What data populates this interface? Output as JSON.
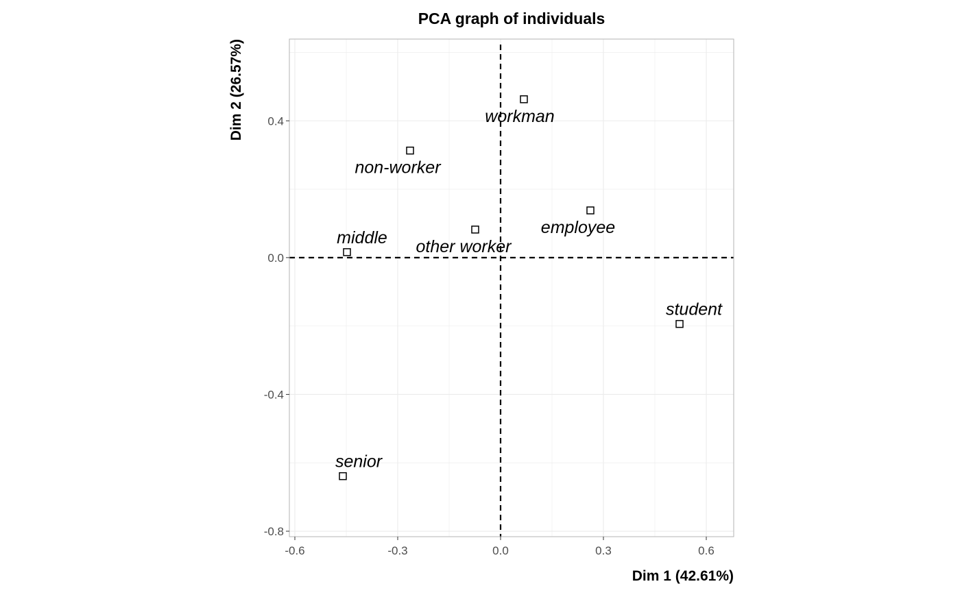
{
  "chart_data": {
    "type": "scatter",
    "title": "PCA graph of individuals",
    "xlabel": "Dim 1 (42.61%)",
    "ylabel": "Dim 2 (26.57%)",
    "xlim": [
      -0.616,
      0.68
    ],
    "ylim": [
      -0.816,
      0.639
    ],
    "xticks": [
      -0.6,
      -0.3,
      0.0,
      0.3,
      0.6
    ],
    "xtick_labels": [
      "-0.6",
      "-0.3",
      "0.0",
      "0.3",
      "0.6"
    ],
    "yticks": [
      -0.8,
      -0.4,
      0.0,
      0.4
    ],
    "ytick_labels": [
      "-0.8",
      "-0.4",
      "0.0",
      "0.4"
    ],
    "grid": true,
    "reference_lines": {
      "x": 0,
      "y": 0,
      "style": "dashed"
    },
    "points": [
      {
        "label": "workman",
        "x": 0.068,
        "y": 0.463
      },
      {
        "label": "non-worker",
        "x": -0.264,
        "y": 0.313
      },
      {
        "label": "employee",
        "x": 0.262,
        "y": 0.138
      },
      {
        "label": "other worker",
        "x": -0.074,
        "y": 0.082
      },
      {
        "label": "middle",
        "x": -0.448,
        "y": 0.016
      },
      {
        "label": "student",
        "x": 0.522,
        "y": -0.194
      },
      {
        "label": "senior",
        "x": -0.46,
        "y": -0.639
      }
    ],
    "colors": {
      "grid": "#ebebeb",
      "panel_border": "#b3b3b3",
      "marks": "#000000",
      "tick_text": "#4d4d4d"
    }
  }
}
